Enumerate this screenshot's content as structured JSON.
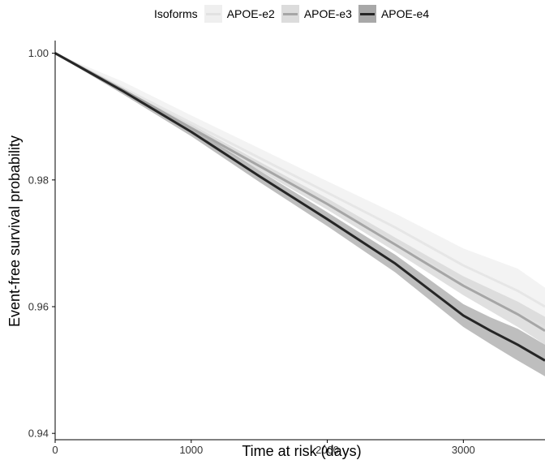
{
  "legend": {
    "title": "Isoforms",
    "items": [
      {
        "label": "APOE-e2",
        "color": "#e6e6e6",
        "band": "#efefef"
      },
      {
        "label": "APOE-e3",
        "color": "#a6a6a6",
        "band": "#d6d6d6"
      },
      {
        "label": "APOE-e4",
        "color": "#262626",
        "band": "#a8a8a8"
      }
    ]
  },
  "chart_data": {
    "type": "line",
    "xlabel": "Time at risk (days)",
    "ylabel": "Event-free survival probability",
    "xlim": [
      0,
      3600
    ],
    "ylim": [
      0.939,
      1.002
    ],
    "xticks": [
      0,
      1000,
      2000,
      3000
    ],
    "yticks": [
      0.94,
      0.96,
      0.98,
      1.0
    ],
    "ytick_labels": [
      "0.94",
      "0.96",
      "0.98",
      "1.00"
    ],
    "grid": false,
    "legend_position": "top",
    "series": [
      {
        "name": "APOE-e2",
        "color": "#e6e6e6",
        "band": "#efefef",
        "x": [
          0,
          500,
          1000,
          1500,
          2000,
          2500,
          3000,
          3400,
          3600
        ],
        "y": [
          1.0,
          0.9945,
          0.989,
          0.9835,
          0.978,
          0.9725,
          0.9665,
          0.9625,
          0.96
        ],
        "lower": [
          0.9998,
          0.9935,
          0.9878,
          0.982,
          0.9762,
          0.9703,
          0.9638,
          0.959,
          0.957
        ],
        "upper": [
          1.0,
          0.9955,
          0.9902,
          0.985,
          0.9798,
          0.9747,
          0.9692,
          0.966,
          0.963
        ]
      },
      {
        "name": "APOE-e3",
        "color": "#a6a6a6",
        "band": "#d6d6d6",
        "x": [
          0,
          500,
          1000,
          1500,
          2000,
          2500,
          3000,
          3400,
          3600
        ],
        "y": [
          1.0,
          0.9942,
          0.9882,
          0.9822,
          0.9762,
          0.9698,
          0.9633,
          0.9588,
          0.9562
        ],
        "lower": [
          0.9999,
          0.9938,
          0.9876,
          0.9815,
          0.9753,
          0.9687,
          0.9618,
          0.9568,
          0.954
        ],
        "upper": [
          1.0,
          0.9946,
          0.9888,
          0.9829,
          0.9771,
          0.9709,
          0.9648,
          0.9608,
          0.9584
        ]
      },
      {
        "name": "APOE-e4",
        "color": "#262626",
        "band": "#a8a8a8",
        "x": [
          0,
          500,
          1000,
          1500,
          2000,
          2500,
          3000,
          3200,
          3400,
          3600
        ],
        "y": [
          1.0,
          0.994,
          0.9876,
          0.9806,
          0.9738,
          0.9668,
          0.9586,
          0.9562,
          0.954,
          0.9515
        ],
        "lower": [
          0.9999,
          0.9935,
          0.9869,
          0.9797,
          0.9727,
          0.9654,
          0.9568,
          0.9541,
          0.9515,
          0.949
        ],
        "upper": [
          1.0,
          0.9945,
          0.9883,
          0.9815,
          0.9749,
          0.9682,
          0.9604,
          0.9583,
          0.9565,
          0.954
        ]
      }
    ]
  }
}
